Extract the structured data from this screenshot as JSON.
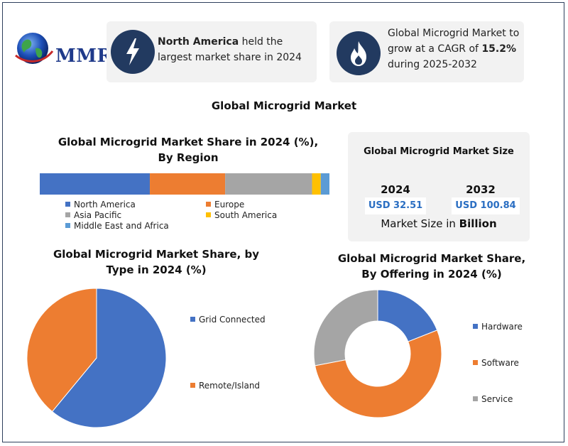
{
  "logo": {
    "text": "MMR"
  },
  "highlights": [
    {
      "bold": "North America",
      "text": " held the largest market share in 2024",
      "icon": "lightning-icon"
    },
    {
      "text_before": "Global Microgrid Market to grow at a CAGR of ",
      "bold": "15.2%",
      "text_after": " during 2025-2032",
      "icon": "flame-icon"
    }
  ],
  "main_title": "Global Microgrid Market",
  "market_size": {
    "title": "Global Microgrid Market Size",
    "items": [
      {
        "year": "2024",
        "value": "USD 32.51"
      },
      {
        "year": "2032",
        "value": "USD 100.84"
      }
    ],
    "unit_prefix": "Market Size in ",
    "unit_bold": "Billion"
  },
  "colors": {
    "blue": "#4472c4",
    "orange": "#ed7d31",
    "gray": "#a5a5a5",
    "yellow": "#ffc000",
    "lightblue": "#5b9bd5",
    "navy": "#223a60"
  },
  "chart_data": [
    {
      "type": "bar",
      "orientation": "horizontal-stacked",
      "title": "Global Microgrid Market Share in 2024 (%), By Region",
      "series": [
        {
          "name": "North America",
          "values": [
            38
          ]
        },
        {
          "name": "Europe",
          "values": [
            26
          ]
        },
        {
          "name": "Asia Pacific",
          "values": [
            30
          ]
        },
        {
          "name": "South America",
          "values": [
            3
          ]
        },
        {
          "name": "Middle East and Africa",
          "values": [
            3
          ]
        }
      ],
      "colors": [
        "#4472c4",
        "#ed7d31",
        "#a5a5a5",
        "#ffc000",
        "#5b9bd5"
      ],
      "xlim": [
        0,
        100
      ],
      "legend": "bottom"
    },
    {
      "type": "pie",
      "title": "Global Microgrid Market Share, by Type in 2024 (%)",
      "categories": [
        "Grid Connected",
        "Remote/Island"
      ],
      "values": [
        61,
        39
      ],
      "colors": [
        "#4472c4",
        "#ed7d31"
      ],
      "legend": "right"
    },
    {
      "type": "pie",
      "style": "donut",
      "title": "Global Microgrid Market Share, By Offering in 2024 (%)",
      "categories": [
        "Hardware",
        "Software",
        "Service"
      ],
      "values": [
        19,
        53,
        28
      ],
      "colors": [
        "#4472c4",
        "#ed7d31",
        "#a5a5a5"
      ],
      "legend": "right"
    }
  ]
}
